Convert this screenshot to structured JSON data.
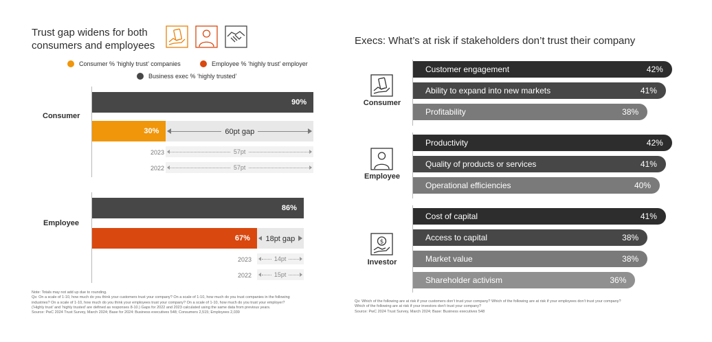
{
  "left": {
    "title_line1": "Trust gap widens for both",
    "title_line2": "consumers and employees",
    "header_icons": [
      "hand-holding-card-icon",
      "person-icon",
      "handshake-icon"
    ],
    "legend": [
      {
        "label": "Consumer % ‘highly trust’ companies",
        "color": "#f0960a"
      },
      {
        "label": "Employee % ‘highly trust’ employer",
        "color": "#d9480f"
      },
      {
        "label": "Business exec % ‘highly trusted’",
        "color": "#474747"
      }
    ],
    "footnote_lines": [
      "Note: Totals may not add up due to rounding.",
      "Qs: On a scale of 1-10, how much do you think your customers trust your company? On a scale of 1-10, how much do you trust companies in the following",
      "industries? On a scale of 1-10, how much do you think your employees trust your company? On a scale of 1-10, how much do you trust your employer?",
      "(‘Highly trust’ and ‘highly trusted’ are defined as responses 8-10.) Gaps for 2022 and 2023 calculated using the same data from previous years.",
      "Source: PwC 2024 Trust Survey, March 2024; Base for 2024: Business executives 548; Consumers 2,515; Employees 2,039"
    ]
  },
  "right": {
    "title": "Execs: What’s at risk if stakeholders don’t trust their company",
    "footnote_lines": [
      "Qs: Which of the following are at risk if your customers don’t trust your company? Which of the following are at risk if your employees don’t trust your company?",
      "Which of the following are at risk if your investors don’t trust your company?",
      "Source: PwC 2024 Trust Survey, March 2024; Base: Business executives 548"
    ]
  },
  "chart_data": [
    {
      "type": "bar",
      "orientation": "horizontal",
      "title": "Trust gap widens for both consumers and employees",
      "xlim": [
        0,
        100
      ],
      "groups": [
        {
          "name": "Consumer",
          "exec_value": 90,
          "exec_label": "90%",
          "stakeholder_value": 30,
          "stakeholder_label": "30%",
          "stakeholder_color": "#f0960a",
          "gap_label": "60pt gap",
          "history": [
            {
              "year": "2023",
              "gap_label": "57pt"
            },
            {
              "year": "2022",
              "gap_label": "57pt"
            }
          ]
        },
        {
          "name": "Employee",
          "exec_value": 86,
          "exec_label": "86%",
          "stakeholder_value": 67,
          "stakeholder_label": "67%",
          "stakeholder_color": "#d9480f",
          "gap_label": "18pt gap",
          "history": [
            {
              "year": "2023",
              "gap_label": "14pt"
            },
            {
              "year": "2022",
              "gap_label": "15pt"
            }
          ]
        }
      ]
    },
    {
      "type": "bar",
      "orientation": "horizontal",
      "title": "Execs: What’s at risk if stakeholders don’t trust their company",
      "groups": [
        {
          "stakeholder": "Consumer",
          "icon": "hand-holding-card-icon",
          "items": [
            {
              "label": "Customer engagement",
              "value": 42,
              "value_label": "42%",
              "color": "#2d2d2d"
            },
            {
              "label": "Ability to expand into new markets",
              "value": 41,
              "value_label": "41%",
              "color": "#474747"
            },
            {
              "label": "Profitability",
              "value": 38,
              "value_label": "38%",
              "color": "#7a7a7a"
            }
          ]
        },
        {
          "stakeholder": "Employee",
          "icon": "person-icon",
          "items": [
            {
              "label": "Productivity",
              "value": 42,
              "value_label": "42%",
              "color": "#2d2d2d"
            },
            {
              "label": "Quality of products or services",
              "value": 41,
              "value_label": "41%",
              "color": "#474747"
            },
            {
              "label": "Operational efficiencies",
              "value": 40,
              "value_label": "40%",
              "color": "#7a7a7a"
            }
          ]
        },
        {
          "stakeholder": "Investor",
          "icon": "hand-holding-dollar-icon",
          "items": [
            {
              "label": "Cost of capital",
              "value": 41,
              "value_label": "41%",
              "color": "#2d2d2d"
            },
            {
              "label": "Access to capital",
              "value": 38,
              "value_label": "38%",
              "color": "#474747"
            },
            {
              "label": "Market value",
              "value": 38,
              "value_label": "38%",
              "color": "#7a7a7a"
            },
            {
              "label": "Shareholder activism",
              "value": 36,
              "value_label": "36%",
              "color": "#909090"
            }
          ]
        }
      ]
    }
  ]
}
